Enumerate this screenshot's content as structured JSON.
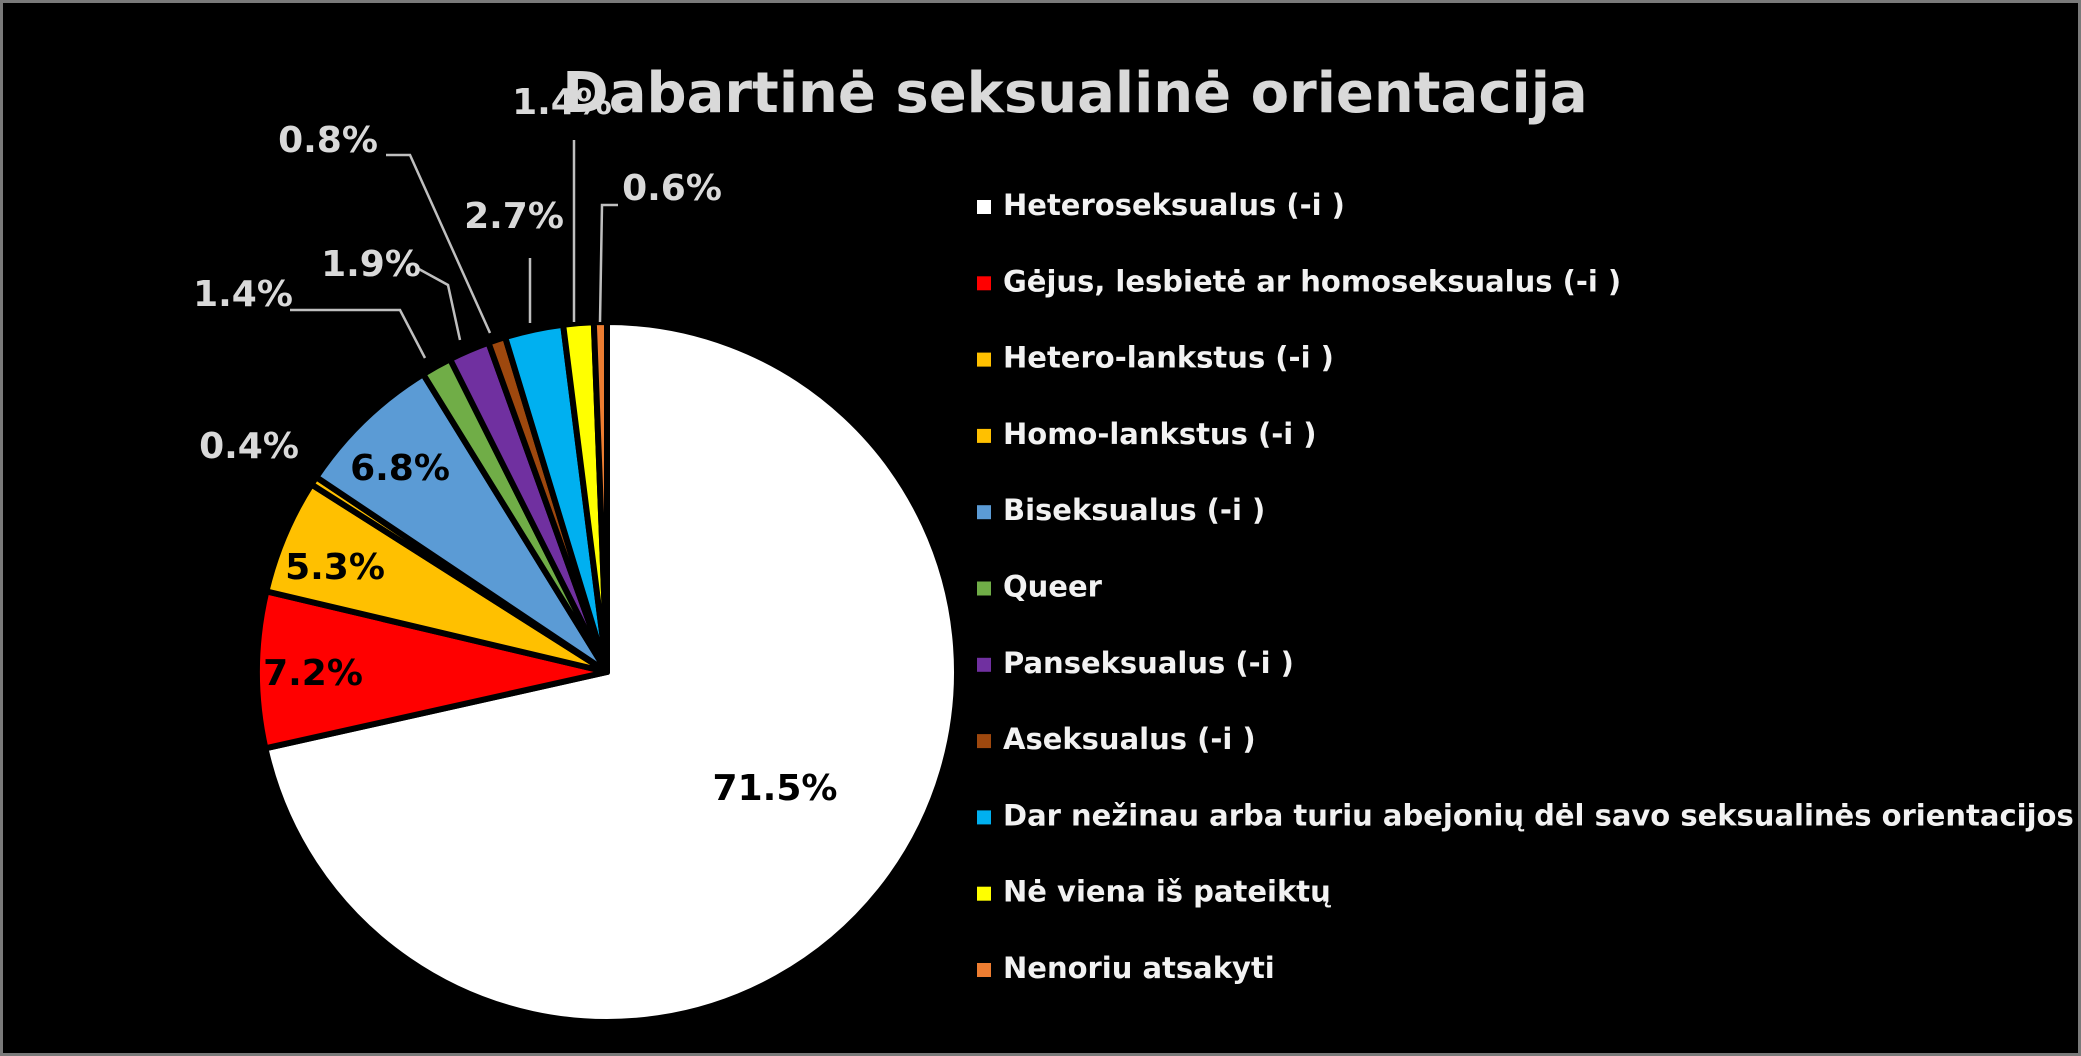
{
  "chart_data": {
    "type": "pie",
    "title": "Dabartinė seksualinė orientacija",
    "legend_position": "right",
    "slices": [
      {
        "label": "Heteroseksualus (-i )",
        "value": 71.5,
        "value_label": "71.5%",
        "color": "#ffffff"
      },
      {
        "label": "Gėjus, lesbietė ar homoseksualus (-i )",
        "value": 7.2,
        "value_label": "7.2%",
        "color": "#ff0000"
      },
      {
        "label": "Hetero-lankstus (-i )",
        "value": 5.3,
        "value_label": "5.3%",
        "color": "#ffc000"
      },
      {
        "label": "Homo-lankstus (-i )",
        "value": 0.4,
        "value_label": "0.4%",
        "color": "#ffc000"
      },
      {
        "label": "Biseksualus (-i )",
        "value": 6.8,
        "value_label": "6.8%",
        "color": "#5b9bd5"
      },
      {
        "label": "Queer",
        "value": 1.4,
        "value_label": "1.4%",
        "color": "#70ad47"
      },
      {
        "label": "Panseksualus (-i )",
        "value": 1.9,
        "value_label": "1.9%",
        "color": "#7030a0"
      },
      {
        "label": "Aseksualus (-i )",
        "value": 0.8,
        "value_label": "0.8%",
        "color": "#9e480e"
      },
      {
        "label": "Dar nežinau arba turiu abejonių dėl savo seksualinės orientacijos",
        "value": 2.7,
        "value_label": "2.7%",
        "color": "#00b0f0"
      },
      {
        "label": "Nė viena iš pateiktų",
        "value": 1.4,
        "value_label": "1.4%",
        "color": "#ffff00"
      },
      {
        "label": "Nenoriu atsakyti",
        "value": 0.6,
        "value_label": "0.6%",
        "color": "#ed7d31"
      }
    ]
  }
}
